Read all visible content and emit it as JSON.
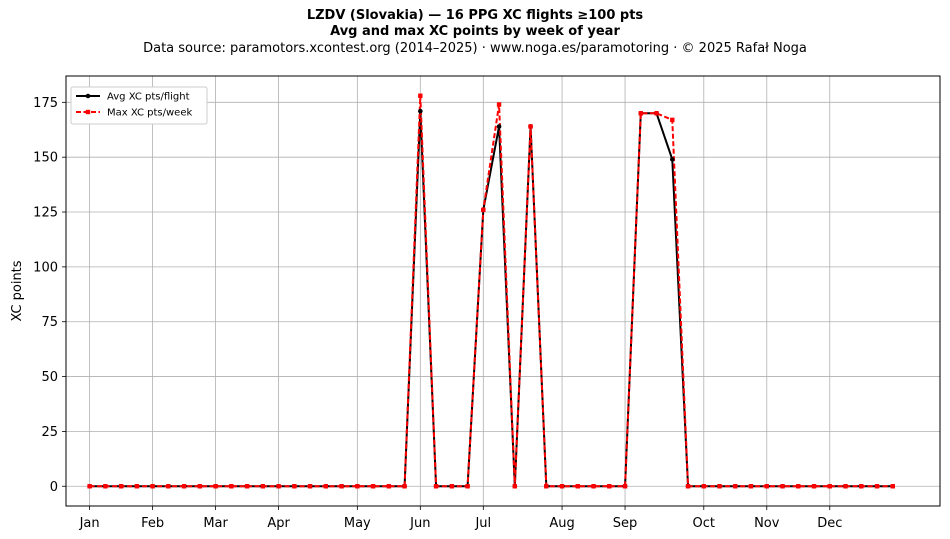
{
  "header": {
    "title_line1": "LZDV (Slovakia)  —  16 PPG XC flights ≥100 pts",
    "title_line2": "Avg and max XC points by week of year",
    "source_line": "Data source: paramotors.xcontest.org (2014–2025)  ·  www.noga.es/paramotoring  ·  © 2025 Rafał Noga"
  },
  "chart_data": {
    "type": "line",
    "title": "LZDV (Slovakia)  —  16 PPG XC flights ≥100 pts",
    "subtitle": "Avg and max XC points by week of year",
    "xlabel": "",
    "ylabel": "XC points",
    "x": [
      1,
      2,
      3,
      4,
      5,
      6,
      7,
      8,
      9,
      10,
      11,
      12,
      13,
      14,
      15,
      16,
      17,
      18,
      19,
      20,
      21,
      22,
      23,
      24,
      25,
      26,
      27,
      28,
      29,
      30,
      31,
      32,
      33,
      34,
      35,
      36,
      37,
      38,
      39,
      40,
      41,
      42,
      43,
      44,
      45,
      46,
      47,
      48,
      49,
      50,
      51,
      52
    ],
    "x_ticks": [
      {
        "label": "Jan",
        "week": 1
      },
      {
        "label": "Feb",
        "week": 5
      },
      {
        "label": "Mar",
        "week": 9
      },
      {
        "label": "Apr",
        "week": 13
      },
      {
        "label": "May",
        "week": 18
      },
      {
        "label": "Jun",
        "week": 22
      },
      {
        "label": "Jul",
        "week": 26
      },
      {
        "label": "Aug",
        "week": 31
      },
      {
        "label": "Sep",
        "week": 35
      },
      {
        "label": "Oct",
        "week": 40
      },
      {
        "label": "Nov",
        "week": 44
      },
      {
        "label": "Dec",
        "week": 48
      }
    ],
    "xlim": [
      -0.5,
      55.0
    ],
    "ylim": [
      -9,
      187
    ],
    "y_ticks": [
      0,
      25,
      50,
      75,
      100,
      125,
      150,
      175
    ],
    "grid": true,
    "legend_position": "top-left",
    "series": [
      {
        "name": "Avg XC pts/flight",
        "color": "#000000",
        "style": "solid",
        "marker": "circle",
        "values": [
          0,
          0,
          0,
          0,
          0,
          0,
          0,
          0,
          0,
          0,
          0,
          0,
          0,
          0,
          0,
          0,
          0,
          0,
          0,
          0,
          0,
          171,
          0,
          0,
          0,
          126,
          164,
          0,
          164,
          0,
          0,
          0,
          0,
          0,
          0,
          170,
          170,
          149,
          0,
          0,
          0,
          0,
          0,
          0,
          0,
          0,
          0,
          0,
          0,
          0,
          0,
          0
        ]
      },
      {
        "name": "Max XC pts/week",
        "color": "#ff0000",
        "style": "dashed",
        "marker": "square",
        "values": [
          0,
          0,
          0,
          0,
          0,
          0,
          0,
          0,
          0,
          0,
          0,
          0,
          0,
          0,
          0,
          0,
          0,
          0,
          0,
          0,
          0,
          178,
          0,
          0,
          0,
          126,
          174,
          0,
          164,
          0,
          0,
          0,
          0,
          0,
          0,
          170,
          170,
          167,
          0,
          0,
          0,
          0,
          0,
          0,
          0,
          0,
          0,
          0,
          0,
          0,
          0,
          0
        ]
      }
    ]
  }
}
